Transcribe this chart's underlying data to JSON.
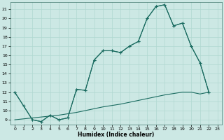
{
  "xlabel": "Humidex (Indice chaleur)",
  "bg_color": "#cce8e4",
  "line_color": "#1a6b60",
  "grid_color": "#b0d8d0",
  "xlim": [
    -0.5,
    23.5
  ],
  "ylim": [
    8.5,
    21.8
  ],
  "xticks": [
    0,
    1,
    2,
    3,
    4,
    5,
    6,
    7,
    8,
    9,
    10,
    11,
    12,
    13,
    14,
    15,
    16,
    17,
    18,
    19,
    20,
    21,
    22,
    23
  ],
  "yticks": [
    9,
    10,
    11,
    12,
    13,
    14,
    15,
    16,
    17,
    18,
    19,
    20,
    21
  ],
  "line_a_x": [
    0,
    1,
    2,
    3,
    4,
    5,
    6,
    7,
    8,
    9,
    10,
    11,
    12,
    13,
    14,
    15,
    16,
    17,
    18,
    19,
    20,
    21,
    22
  ],
  "line_a_y": [
    12,
    10.5,
    9.0,
    8.8,
    9.5,
    9.0,
    9.2,
    12.3,
    12.2,
    15.5,
    16.5,
    16.5,
    16.3,
    17.0,
    17.5,
    20.0,
    21.3,
    21.5,
    19.2,
    19.5,
    17.0,
    15.2,
    12.0
  ],
  "line_b_x": [
    0,
    2,
    3,
    4,
    5,
    6,
    7,
    8,
    9,
    10,
    11,
    12,
    13,
    14,
    15,
    16,
    17,
    18,
    19,
    20,
    21,
    22
  ],
  "line_b_y": [
    12,
    9.0,
    8.8,
    9.5,
    9.0,
    9.2,
    12.3,
    12.2,
    15.5,
    16.5,
    16.5,
    16.3,
    17.0,
    17.5,
    20.0,
    21.3,
    21.5,
    19.2,
    19.5,
    17.0,
    15.2,
    12.0
  ],
  "line_c_x": [
    0,
    1,
    2,
    3,
    4,
    5,
    6,
    7,
    8,
    9,
    10,
    11,
    12,
    13,
    14,
    15,
    16,
    17,
    18,
    19,
    20,
    21,
    22
  ],
  "line_c_y": [
    9.0,
    9.1,
    9.2,
    9.3,
    9.4,
    9.5,
    9.65,
    9.8,
    10.0,
    10.2,
    10.4,
    10.55,
    10.7,
    10.9,
    11.1,
    11.3,
    11.5,
    11.7,
    11.85,
    12.0,
    12.0,
    11.8,
    12.0
  ]
}
